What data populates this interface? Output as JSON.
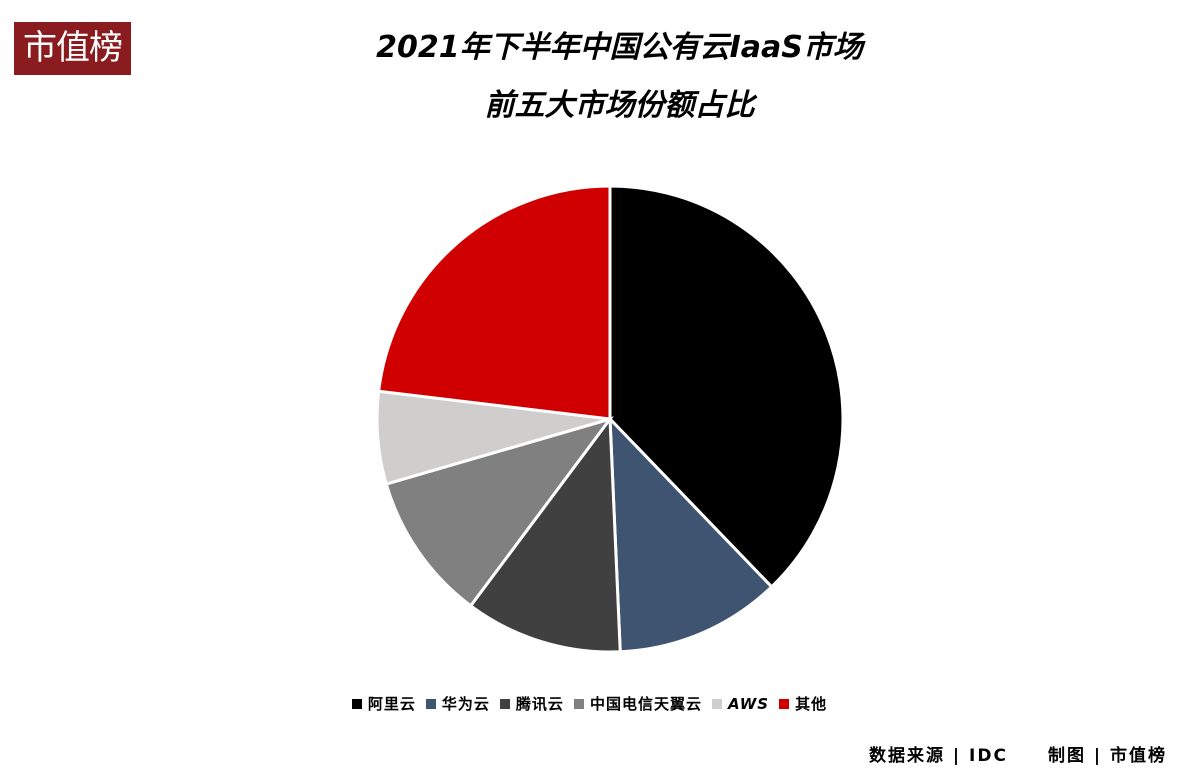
{
  "logo": {
    "text": "市值榜"
  },
  "chart_data": {
    "type": "pie",
    "title": "2021年下半年中国公有云IaaS市场",
    "subtitle": "前五大市场份额占比",
    "unit": "%",
    "legend_position": "bottom",
    "start_angle": "12 o'clock, clockwise",
    "slices": [
      {
        "name": "阿里云",
        "value": 37.8,
        "color": "#000000"
      },
      {
        "name": "华为云",
        "value": 11.5,
        "color": "#3f5470"
      },
      {
        "name": "腾讯云",
        "value": 10.9,
        "color": "#404040"
      },
      {
        "name": "中国电信天翼云",
        "value": 10.3,
        "color": "#808080"
      },
      {
        "name": "AWS",
        "value": 6.4,
        "color": "#d0cecd"
      },
      {
        "name": "其他",
        "value": 23.1,
        "color": "#d00000"
      }
    ]
  },
  "footer": {
    "source": "数据来源 | IDC",
    "credit": "制图 | 市值榜"
  }
}
